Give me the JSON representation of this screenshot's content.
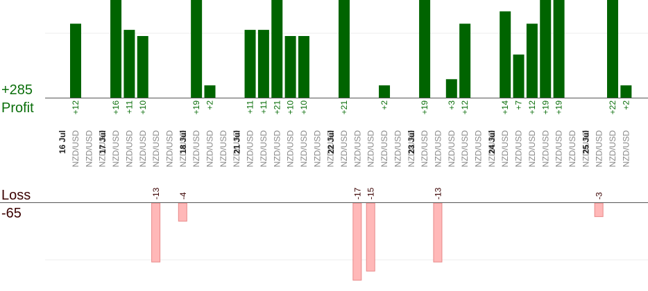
{
  "profit": {
    "total": "+285",
    "label": "Profit"
  },
  "loss": {
    "total": "-65",
    "label": "Loss"
  },
  "colors": {
    "profit_text": "#0a6e0a",
    "profit_bar": "#006400",
    "loss_text": "#3a0000",
    "loss_bar_fill": "#ffb8b8",
    "loss_bar_stroke": "#e88888",
    "pair_text": "#888888",
    "date_text": "#222222",
    "axis": "#555555",
    "grid": "#eeeeee"
  },
  "chart_data": {
    "type": "bar",
    "categories": [
      "NZD/USD",
      "NZD/USD",
      "NZD/USD",
      "NZD/USD",
      "NZD/USD",
      "NZD/USD",
      "NZD/USD",
      "NZD/USD",
      "NZD/USD",
      "NZD/USD",
      "NZD/USD",
      "NZD/USD",
      "NZD/USD",
      "NZD/USD",
      "NZD/USD",
      "NZD/USD",
      "NZD/USD",
      "NZD/USD",
      "NZD/USD",
      "NZD/USD",
      "NZD/USD",
      "NZD/USD",
      "NZD/USD",
      "NZD/USD",
      "NZD/USD",
      "NZD/USD",
      "NZD/USD",
      "NZD/USD",
      "NZD/USD",
      "NZD/USD",
      "NZD/USD",
      "NZD/USD",
      "NZD/USD",
      "NZD/USD",
      "NZD/USD",
      "NZD/USD",
      "NZD/USD",
      "NZD/USD",
      "NZD/USD",
      "NZD/USD",
      "NZD/USD",
      "NZD/USD"
    ],
    "series": [
      {
        "name": "Profit",
        "values": [
          12,
          null,
          null,
          16,
          11,
          10,
          null,
          null,
          null,
          19,
          2,
          null,
          null,
          11,
          11,
          21,
          10,
          10,
          null,
          null,
          21,
          null,
          null,
          2,
          null,
          null,
          19,
          null,
          3,
          12,
          null,
          null,
          14,
          7,
          12,
          19,
          19,
          null,
          null,
          null,
          22,
          2
        ]
      },
      {
        "name": "Loss",
        "values": [
          null,
          null,
          null,
          null,
          null,
          null,
          -13,
          null,
          -4,
          null,
          null,
          null,
          null,
          null,
          null,
          null,
          null,
          null,
          null,
          null,
          null,
          -17,
          -15,
          null,
          null,
          null,
          null,
          -13,
          null,
          null,
          null,
          null,
          null,
          null,
          null,
          null,
          null,
          null,
          null,
          -3,
          null,
          null
        ]
      }
    ],
    "value_labels": [
      "+12",
      "",
      "",
      "+16",
      "+11",
      "+10",
      "-13",
      "",
      "-4",
      "+19",
      "+2",
      "",
      "",
      "+11",
      "+11",
      "+21",
      "+10",
      "+10",
      "",
      "",
      "+21",
      "-17",
      "-15",
      "+2",
      "",
      "",
      "+19",
      "-13",
      "+3",
      "+12",
      "",
      "",
      "+14",
      "+7",
      "+12",
      "+19",
      "+19",
      "",
      "",
      "-3",
      "+22",
      "+2"
    ],
    "date_labels": [
      {
        "label": "16 Jul",
        "before_index": 0
      },
      {
        "label": "17 Jul",
        "before_index": 3
      },
      {
        "label": "18 Jul",
        "before_index": 9
      },
      {
        "label": "21 Jul",
        "before_index": 13
      },
      {
        "label": "22 Jul",
        "before_index": 20
      },
      {
        "label": "23 Jul",
        "before_index": 26
      },
      {
        "label": "24 Jul",
        "before_index": 32
      },
      {
        "label": "25 Jul",
        "before_index": 39
      }
    ],
    "profit_ylim": [
      0,
      15
    ],
    "loss_ylim": [
      -16.5,
      0
    ],
    "grid": true
  }
}
